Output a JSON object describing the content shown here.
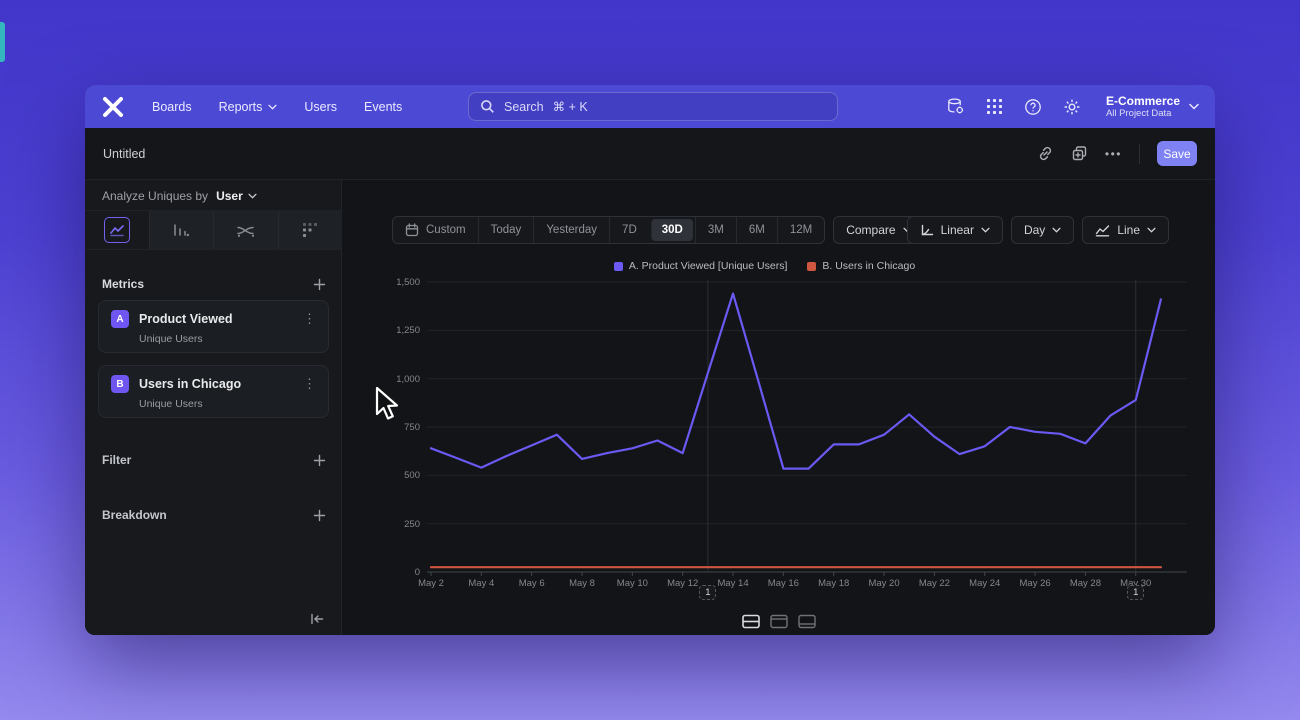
{
  "nav": {
    "items": [
      {
        "label": "Boards",
        "has_dropdown": false
      },
      {
        "label": "Reports",
        "has_dropdown": true
      },
      {
        "label": "Users",
        "has_dropdown": false
      },
      {
        "label": "Events",
        "has_dropdown": false
      }
    ],
    "search": {
      "placeholder": "Search",
      "shortcut": "⌘ + K"
    },
    "right_icons": [
      "data-management-icon",
      "apps-grid-icon",
      "help-icon",
      "settings-gear-icon"
    ],
    "project": {
      "name": "E-Commerce",
      "subtitle": "All Project Data"
    }
  },
  "toolbar": {
    "title": "Untitled",
    "save_label": "Save"
  },
  "sidebar": {
    "analyze_prefix": "Analyze Uniques by",
    "analyze_value": "User",
    "chart_tabs": [
      {
        "name": "line-chart-tab",
        "selected": true
      },
      {
        "name": "bar-chart-tab",
        "selected": false
      },
      {
        "name": "flow-chart-tab",
        "selected": false
      },
      {
        "name": "grid-chart-tab",
        "selected": false
      }
    ],
    "metrics": {
      "header": "Metrics",
      "items": [
        {
          "badge": "A",
          "title": "Product Viewed",
          "subtitle": "Unique Users"
        },
        {
          "badge": "B",
          "title": "Users in Chicago",
          "subtitle": "Unique Users"
        }
      ]
    },
    "filter_label": "Filter",
    "breakdown_label": "Breakdown"
  },
  "controls": {
    "date_ranges": [
      {
        "label": "Custom",
        "icon": "calendar-icon",
        "selected": false
      },
      {
        "label": "Today",
        "selected": false
      },
      {
        "label": "Yesterday",
        "selected": false
      },
      {
        "label": "7D",
        "selected": false
      },
      {
        "label": "30D",
        "selected": true
      },
      {
        "label": "3M",
        "selected": false
      },
      {
        "label": "6M",
        "selected": false
      },
      {
        "label": "12M",
        "selected": false
      }
    ],
    "compare_label": "Compare",
    "linear": {
      "label": "Linear"
    },
    "granularity": {
      "label": "Day"
    },
    "chart_type": {
      "label": "Line"
    }
  },
  "chart_data": {
    "type": "line",
    "x": [
      "May 2",
      "May 3",
      "May 4",
      "May 5",
      "May 6",
      "May 7",
      "May 8",
      "May 9",
      "May 10",
      "May 11",
      "May 12",
      "May 13",
      "May 14",
      "May 15",
      "May 16",
      "May 17",
      "May 18",
      "May 19",
      "May 20",
      "May 21",
      "May 22",
      "May 23",
      "May 24",
      "May 25",
      "May 26",
      "May 27",
      "May 28",
      "May 29",
      "May 30",
      "May 31"
    ],
    "series": [
      {
        "name": "A. Product Viewed [Unique Users]",
        "color": "#6a5af3",
        "values": [
          640,
          590,
          540,
          600,
          655,
          710,
          585,
          615,
          640,
          680,
          615,
          1030,
          1440,
          990,
          535,
          535,
          660,
          660,
          710,
          815,
          700,
          610,
          650,
          750,
          725,
          715,
          665,
          810,
          890,
          1410
        ]
      },
      {
        "name": "B. Users in Chicago",
        "color": "#d0573f",
        "values": [
          25,
          25,
          25,
          25,
          25,
          25,
          25,
          25,
          25,
          25,
          25,
          25,
          25,
          25,
          25,
          25,
          25,
          25,
          25,
          25,
          25,
          25,
          25,
          25,
          25,
          25,
          25,
          25,
          25,
          25
        ]
      }
    ],
    "ylim": [
      0,
      1500
    ],
    "yticks": [
      0,
      250,
      500,
      750,
      1000,
      1250,
      1500
    ],
    "x_tick_every": 2,
    "grid": true,
    "legend_position": "top",
    "annotations": [
      {
        "day": "May 13",
        "label": "1"
      },
      {
        "day": "May 30",
        "label": "1"
      }
    ]
  }
}
